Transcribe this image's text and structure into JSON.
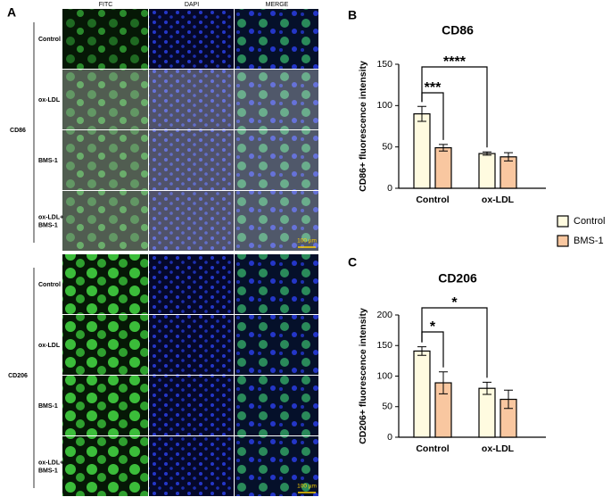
{
  "panel_a": {
    "label": "A",
    "columns": [
      "FITC",
      "DAPI",
      "MERGE"
    ],
    "groups": [
      {
        "name": "CD86",
        "rows": [
          [
            "Control"
          ],
          [
            "ox-LDL"
          ],
          [
            "BMS-1"
          ],
          [
            "ox-LDL+",
            "BMS-1"
          ]
        ],
        "scale_bar": "100 µm"
      },
      {
        "name": "CD206",
        "rows": [
          [
            "Control"
          ],
          [
            "ox-LDL"
          ],
          [
            "BMS-1"
          ],
          [
            "ox-LDL+",
            "BMS-1"
          ]
        ],
        "scale_bar": "100 µm"
      }
    ]
  },
  "chart_data": [
    {
      "type": "bar",
      "panel": "B",
      "title": "CD86",
      "y_label": "CD86+ fluorescence intensity",
      "categories": [
        "Control",
        "ox-LDL"
      ],
      "series": [
        {
          "name": "Control",
          "color": "#fffbe0",
          "values": [
            90,
            42
          ],
          "errors": [
            9,
            2
          ]
        },
        {
          "name": "BMS-1",
          "color": "#f9c7a0",
          "values": [
            49,
            38
          ],
          "errors": [
            4,
            5
          ]
        }
      ],
      "ylim": [
        0,
        150
      ],
      "yticks": [
        0,
        50,
        100,
        150
      ],
      "annotations": [
        "***",
        "****"
      ]
    },
    {
      "type": "bar",
      "panel": "C",
      "title": "CD206",
      "y_label": "CD206+ fluorescence intensity",
      "categories": [
        "Control",
        "ox-LDL"
      ],
      "series": [
        {
          "name": "Control",
          "color": "#fffbe0",
          "values": [
            141,
            80
          ],
          "errors": [
            7,
            10
          ]
        },
        {
          "name": "BMS-1",
          "color": "#f9c7a0",
          "values": [
            89,
            62
          ],
          "errors": [
            18,
            15
          ]
        }
      ],
      "ylim": [
        0,
        200
      ],
      "yticks": [
        0,
        50,
        100,
        150,
        200
      ],
      "annotations": [
        "*",
        "*"
      ]
    }
  ]
}
